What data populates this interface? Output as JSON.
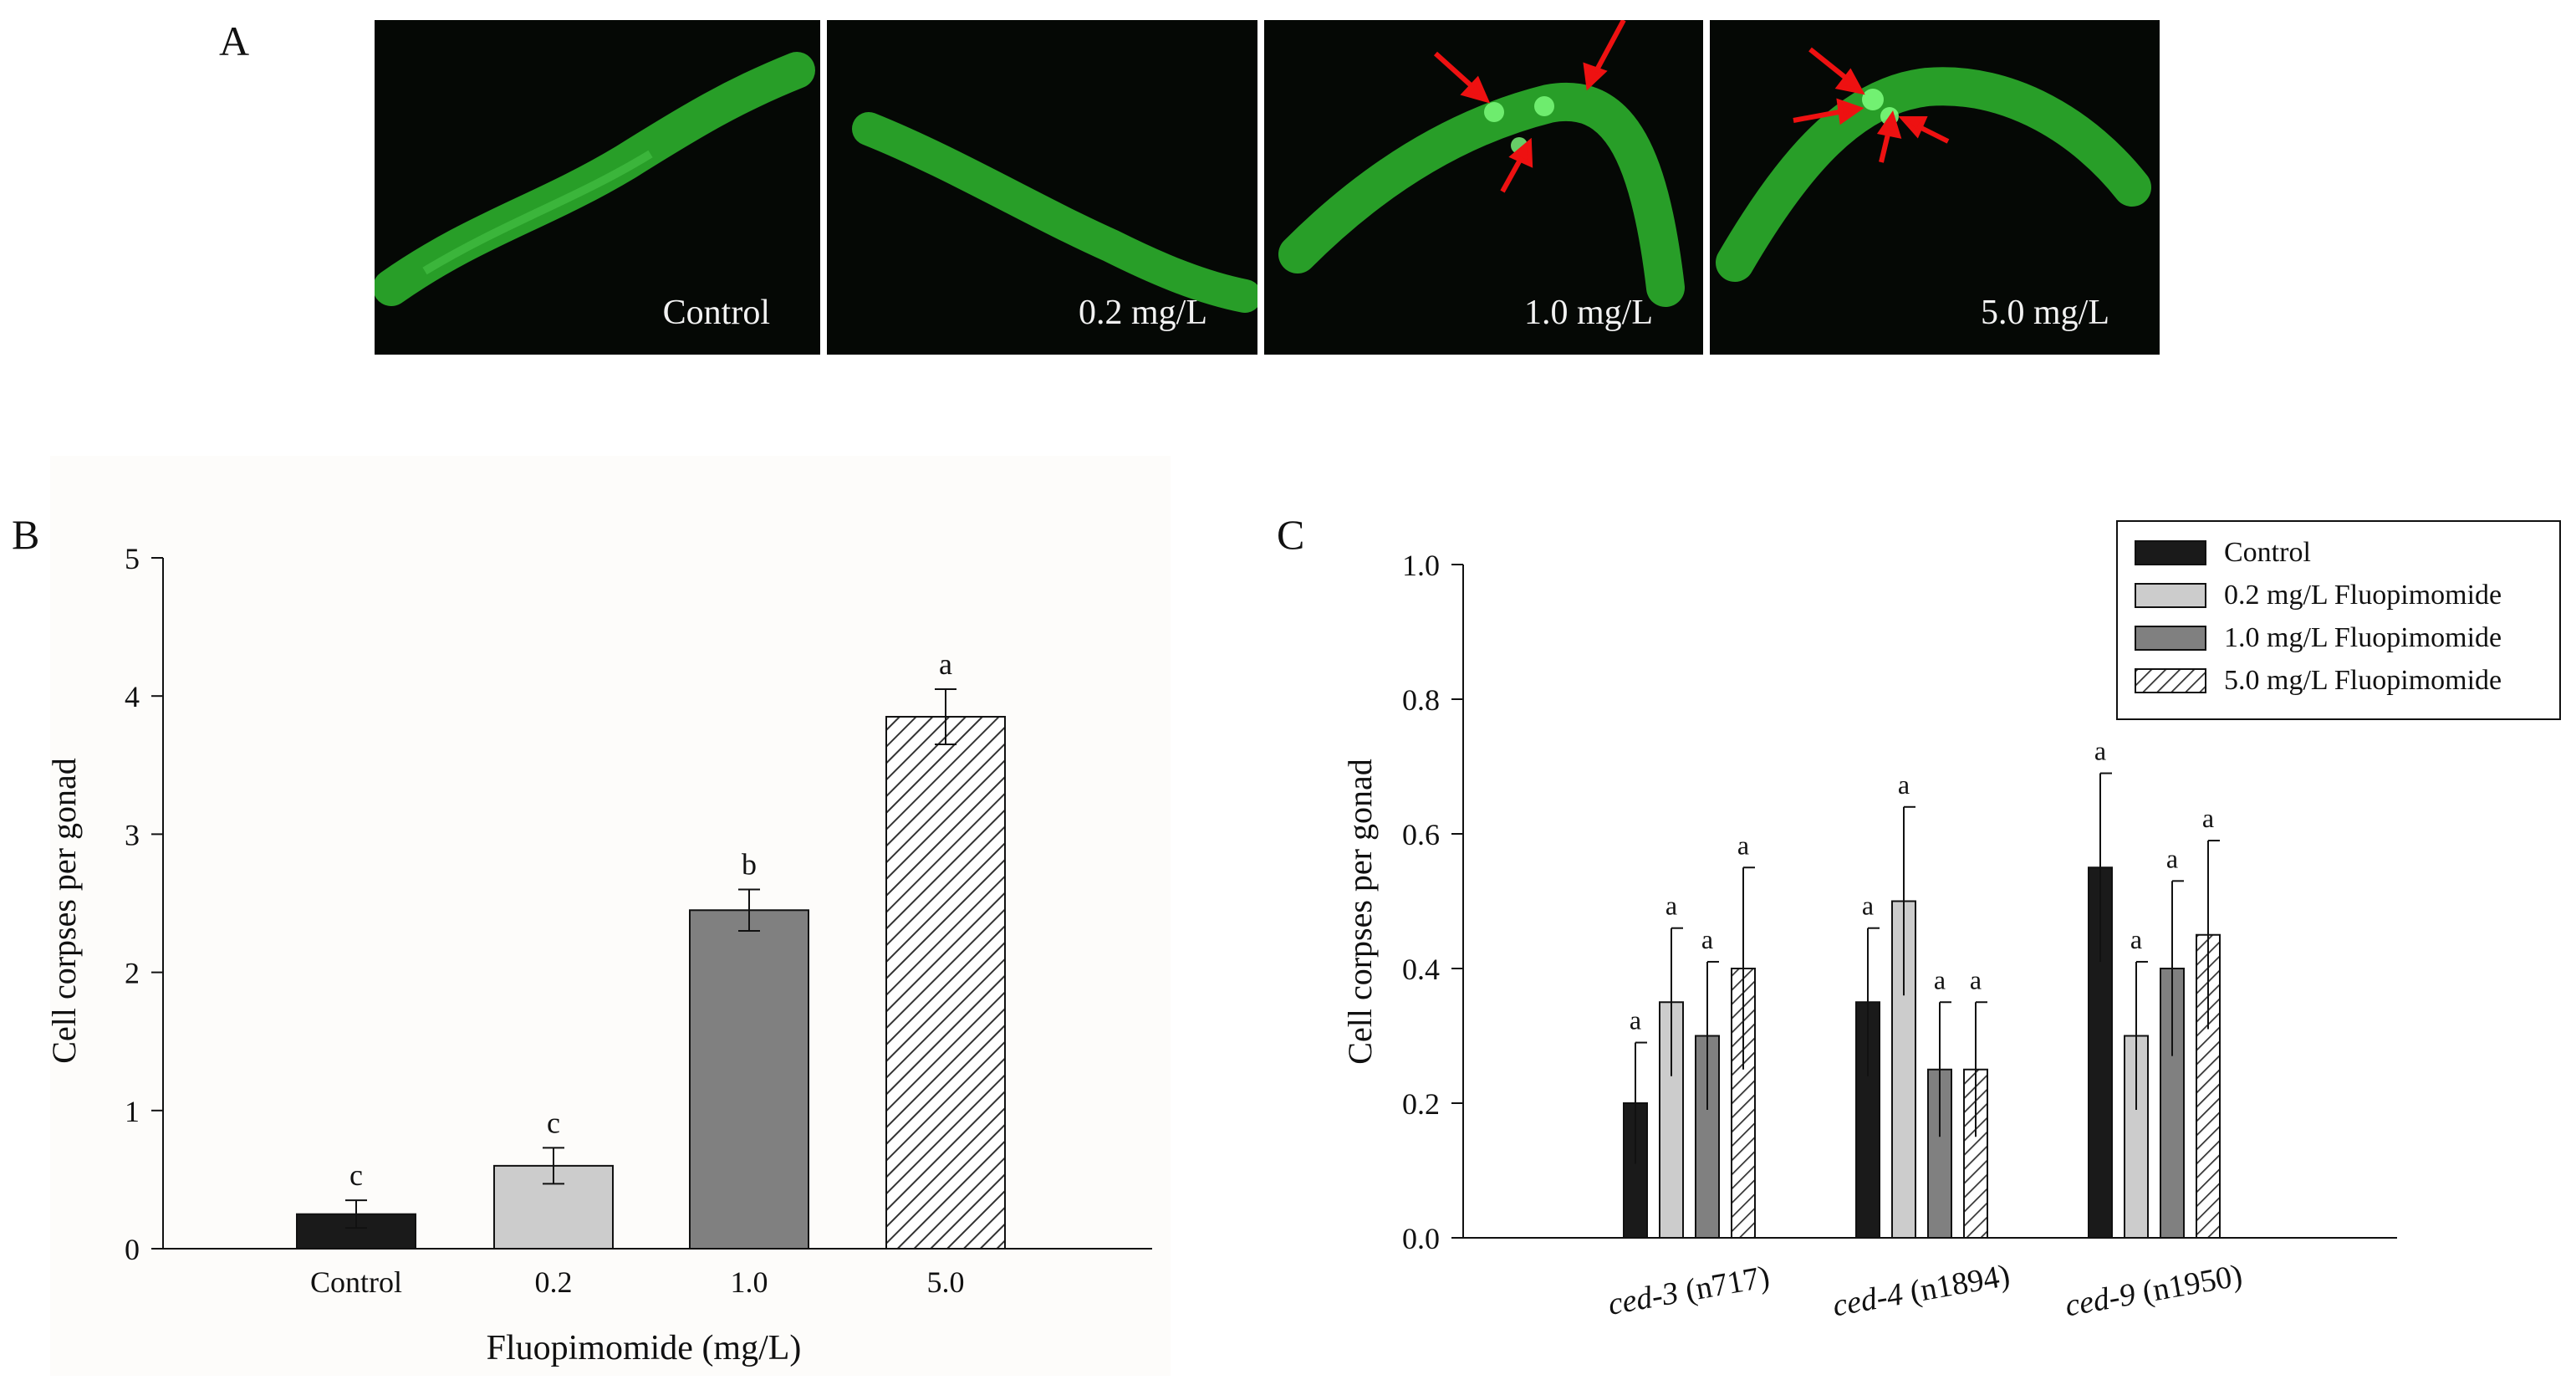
{
  "panel_labels": {
    "a": "A",
    "b": "B",
    "c": "C"
  },
  "micrographs": [
    {
      "caption": "Control",
      "arrows": 0
    },
    {
      "caption": "0.2 mg/L",
      "arrows": 0
    },
    {
      "caption": "1.0 mg/L",
      "arrows": 3
    },
    {
      "caption": "5.0 mg/L",
      "arrows": 4
    }
  ],
  "colors": {
    "control": "#1a1a1a",
    "c02": "#cccccc",
    "c10": "#808080",
    "c50_hatch": "#333333",
    "worm": "#2fb82f",
    "arrow": "#ee1111",
    "plot_bg": "#fdfcfa"
  },
  "chart_data": [
    {
      "type": "bar",
      "panel": "B",
      "categories": [
        "Control",
        "0.2",
        "1.0",
        "5.0"
      ],
      "values": [
        0.25,
        0.6,
        2.45,
        3.85
      ],
      "errors": [
        0.1,
        0.13,
        0.15,
        0.2
      ],
      "letters": [
        "c",
        "c",
        "b",
        "a"
      ],
      "fills": [
        "control",
        "c02",
        "c10",
        "hatch"
      ],
      "xlabel": "Fluopimomide (mg/L)",
      "ylabel": "Cell corpses per gonad",
      "ylim": [
        0,
        5
      ],
      "yticks": [
        "0",
        "1",
        "2",
        "3",
        "4",
        "5"
      ]
    },
    {
      "type": "bar",
      "panel": "C",
      "categories": [
        "ced-3 (n717)",
        "ced-4 (n1894)",
        "ced-9 (n1950)"
      ],
      "category_parts": [
        {
          "gene": "ced-3",
          "allele": " (n717)"
        },
        {
          "gene": "ced-4",
          "allele": " (n1894)"
        },
        {
          "gene": "ced-9",
          "allele": " (n1950)"
        }
      ],
      "series": [
        {
          "name": "Control",
          "fill": "control",
          "values": [
            0.2,
            0.35,
            0.55
          ],
          "errors": [
            0.09,
            0.11,
            0.14
          ],
          "letters": [
            "a",
            "a",
            "a"
          ]
        },
        {
          "name": "0.2 mg/L Fluopimomide",
          "fill": "c02",
          "values": [
            0.35,
            0.5,
            0.3
          ],
          "errors": [
            0.11,
            0.14,
            0.11
          ],
          "letters": [
            "a",
            "a",
            "a"
          ]
        },
        {
          "name": "1.0 mg/L Fluopimomide",
          "fill": "c10",
          "values": [
            0.3,
            0.25,
            0.4
          ],
          "errors": [
            0.11,
            0.1,
            0.13
          ],
          "letters": [
            "a",
            "a",
            "a"
          ]
        },
        {
          "name": "5.0 mg/L Fluopimomide",
          "fill": "hatch",
          "values": [
            0.4,
            0.25,
            0.45
          ],
          "errors": [
            0.15,
            0.1,
            0.14
          ],
          "letters": [
            "a",
            "a",
            "a"
          ]
        }
      ],
      "xlabel": "",
      "ylabel": "Cell corpses per gonad",
      "ylim": [
        0,
        1.0
      ],
      "yticks": [
        "0.0",
        "0.2",
        "0.4",
        "0.6",
        "0.8",
        "1.0"
      ],
      "legend_position": "top-right"
    }
  ]
}
